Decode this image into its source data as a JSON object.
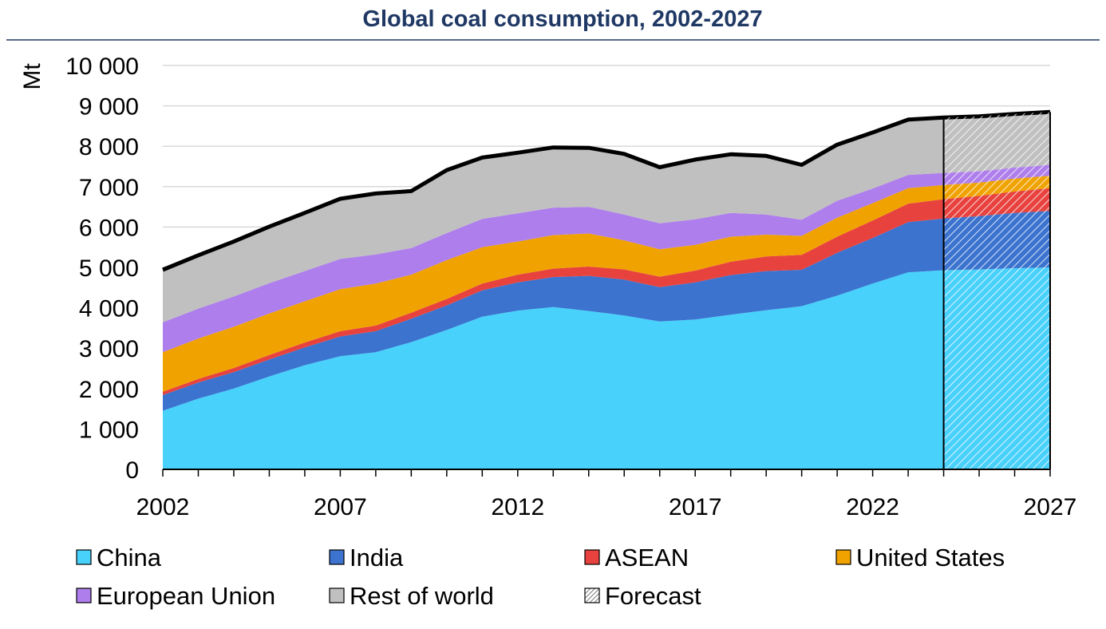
{
  "chart_data": {
    "type": "area",
    "title": "Global coal consumption, 2002-2027",
    "ylabel": "Mt",
    "xlabel": "",
    "ylim": [
      0,
      10000
    ],
    "yticks": [
      0,
      1000,
      2000,
      3000,
      4000,
      5000,
      6000,
      7000,
      8000,
      9000,
      10000
    ],
    "ytick_labels": [
      "0",
      "1 000",
      "2 000",
      "3 000",
      "4 000",
      "5 000",
      "6 000",
      "7 000",
      "8 000",
      "9 000",
      "10 000"
    ],
    "xticks": [
      2002,
      2007,
      2012,
      2017,
      2022,
      2027
    ],
    "xtick_labels": [
      "2002",
      "2007",
      "2012",
      "2017",
      "2022",
      "2027"
    ],
    "x": [
      2002,
      2003,
      2004,
      2005,
      2006,
      2007,
      2008,
      2009,
      2010,
      2011,
      2012,
      2013,
      2014,
      2015,
      2016,
      2017,
      2018,
      2019,
      2020,
      2021,
      2022,
      2023,
      2024,
      2025,
      2026,
      2027
    ],
    "forecast_start": 2024,
    "stacked": true,
    "grid": "horizontal",
    "legend_position": "bottom",
    "series": [
      {
        "name": "China",
        "color": "#48d1fb",
        "values": [
          1450,
          1750,
          2000,
          2300,
          2580,
          2800,
          2900,
          3150,
          3450,
          3780,
          3930,
          4020,
          3920,
          3810,
          3660,
          3710,
          3830,
          3940,
          4040,
          4300,
          4600,
          4880,
          4930,
          4950,
          4980,
          5000
        ]
      },
      {
        "name": "India",
        "color": "#3b73cf",
        "values": [
          390,
          400,
          410,
          420,
          440,
          490,
          520,
          580,
          610,
          650,
          700,
          740,
          870,
          890,
          850,
          920,
          980,
          970,
          900,
          1060,
          1130,
          1240,
          1280,
          1320,
          1370,
          1400
        ]
      },
      {
        "name": "ASEAN",
        "color": "#e8423f",
        "values": [
          80,
          90,
          100,
          110,
          120,
          130,
          140,
          150,
          160,
          170,
          190,
          210,
          230,
          250,
          260,
          290,
          330,
          360,
          370,
          400,
          430,
          460,
          480,
          500,
          530,
          560
        ]
      },
      {
        "name": "United States",
        "color": "#f0a300",
        "values": [
          980,
          1000,
          1020,
          1030,
          1020,
          1040,
          1040,
          940,
          960,
          900,
          820,
          830,
          820,
          720,
          680,
          640,
          620,
          540,
          470,
          470,
          430,
          380,
          350,
          330,
          320,
          310
        ]
      },
      {
        "name": "European Union",
        "color": "#ae7eec",
        "values": [
          740,
          740,
          750,
          750,
          750,
          750,
          720,
          660,
          670,
          700,
          700,
          680,
          660,
          640,
          640,
          630,
          590,
          500,
          400,
          420,
          360,
          330,
          300,
          280,
          270,
          270
        ]
      },
      {
        "name": "Rest of world",
        "color": "#c0c0c0",
        "values": [
          1300,
          1320,
          1360,
          1400,
          1440,
          1490,
          1510,
          1410,
          1560,
          1520,
          1500,
          1490,
          1460,
          1500,
          1390,
          1480,
          1450,
          1450,
          1360,
          1390,
          1390,
          1370,
          1370,
          1360,
          1330,
          1310
        ]
      }
    ],
    "legend": [
      {
        "label": "China",
        "color": "#48d1fb",
        "pattern": "solid"
      },
      {
        "label": "India",
        "color": "#3b73cf",
        "pattern": "solid"
      },
      {
        "label": "ASEAN",
        "color": "#e8423f",
        "pattern": "solid"
      },
      {
        "label": "United States",
        "color": "#f0a300",
        "pattern": "solid"
      },
      {
        "label": "European Union",
        "color": "#ae7eec",
        "pattern": "solid"
      },
      {
        "label": "Rest of world",
        "color": "#c0c0c0",
        "pattern": "solid"
      },
      {
        "label": "Forecast",
        "color": "#ffffff",
        "pattern": "hatched"
      }
    ]
  }
}
